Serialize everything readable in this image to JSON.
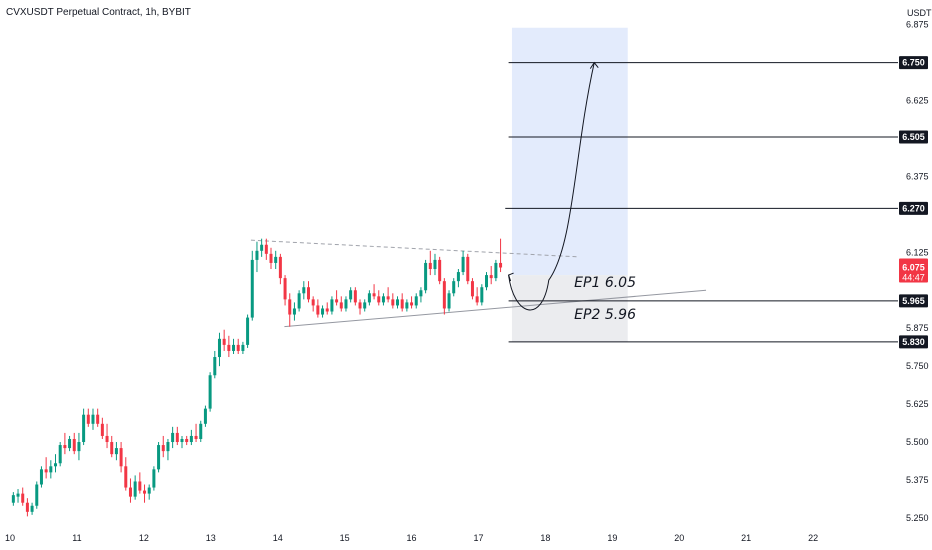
{
  "header": {
    "title": "CVXUSDT Perpetual Contract, 1h, BYBIT"
  },
  "chart_data": {
    "type": "candlestick",
    "title": "CVXUSDT Perpetual Contract, 1h, BYBIT",
    "currency_label": "USDT",
    "ylim": [
      5.22,
      6.93
    ],
    "xlim": [
      10.0,
      22.85
    ],
    "x_ticks": [
      {
        "value": 10,
        "label": "10"
      },
      {
        "value": 11,
        "label": "11"
      },
      {
        "value": 12,
        "label": "12"
      },
      {
        "value": 13,
        "label": "13"
      },
      {
        "value": 14,
        "label": "14"
      },
      {
        "value": 15,
        "label": "15"
      },
      {
        "value": 16,
        "label": "16"
      },
      {
        "value": 17,
        "label": "17"
      },
      {
        "value": 18,
        "label": "18"
      },
      {
        "value": 19,
        "label": "19"
      },
      {
        "value": 20,
        "label": "20"
      },
      {
        "value": 21,
        "label": "21"
      },
      {
        "value": 22,
        "label": "22"
      }
    ],
    "y_ticks": [
      {
        "value": 6.875,
        "label": "6.875"
      },
      {
        "value": 6.625,
        "label": "6.625"
      },
      {
        "value": 6.375,
        "label": "6.375"
      },
      {
        "value": 6.125,
        "label": "6.125"
      },
      {
        "value": 5.875,
        "label": "5.875"
      },
      {
        "value": 5.75,
        "label": "5.750"
      },
      {
        "value": 5.625,
        "label": "5.625"
      },
      {
        "value": 5.5,
        "label": "5.500"
      },
      {
        "value": 5.375,
        "label": "5.375"
      },
      {
        "value": 5.25,
        "label": "5.250"
      }
    ],
    "price_levels": [
      {
        "value": 6.75,
        "label": "6.750",
        "x_start": 17.45
      },
      {
        "value": 6.505,
        "label": "6.505",
        "x_start": 17.45
      },
      {
        "value": 6.27,
        "label": "6.270",
        "x_start": 17.4
      },
      {
        "value": 5.965,
        "label": "5.965",
        "x_start": 17.45
      },
      {
        "value": 5.83,
        "label": "5.830",
        "x_start": 17.45
      }
    ],
    "current_price": {
      "value": 6.075,
      "label": "6.075",
      "countdown": "44:47",
      "color": "#f23645"
    },
    "position": {
      "x_start": 17.5,
      "x_end": 19.23,
      "entry": 6.05,
      "target": 6.865,
      "stop": 5.83,
      "profit_color": "#e3ebfc",
      "loss_color": "#ebecef"
    },
    "annotations": [
      {
        "text": "EP1 6.05",
        "x": 18.43,
        "y": 6.01
      },
      {
        "text": "EP2 5.96",
        "x": 18.43,
        "y": 5.905
      }
    ],
    "trendlines": [
      {
        "name": "upper-resistance",
        "x1": 13.6,
        "y1": 6.165,
        "x2": 18.5,
        "y2": 6.11,
        "style": "dashed"
      },
      {
        "name": "lower-support",
        "x1": 14.1,
        "y1": 5.88,
        "x2": 20.4,
        "y2": 6.0,
        "style": "solid"
      }
    ],
    "projection": {
      "path": [
        [
          17.45,
          6.05
        ],
        [
          17.8,
          5.95
        ],
        [
          18.2,
          6.05
        ],
        [
          18.73,
          6.75
        ]
      ]
    },
    "ohlc": [
      [
        10.05,
        5.3,
        5.335,
        5.29,
        5.325
      ],
      [
        10.12,
        5.32,
        5.345,
        5.3,
        5.33
      ],
      [
        10.19,
        5.33,
        5.35,
        5.29,
        5.3
      ],
      [
        10.26,
        5.3,
        5.315,
        5.255,
        5.27
      ],
      [
        10.33,
        5.27,
        5.3,
        5.26,
        5.29
      ],
      [
        10.4,
        5.29,
        5.37,
        5.28,
        5.36
      ],
      [
        10.47,
        5.36,
        5.42,
        5.35,
        5.41
      ],
      [
        10.54,
        5.41,
        5.45,
        5.38,
        5.4
      ],
      [
        10.61,
        5.4,
        5.44,
        5.38,
        5.42
      ],
      [
        10.68,
        5.42,
        5.46,
        5.4,
        5.43
      ],
      [
        10.75,
        5.43,
        5.5,
        5.42,
        5.49
      ],
      [
        10.82,
        5.49,
        5.53,
        5.46,
        5.48
      ],
      [
        10.89,
        5.48,
        5.52,
        5.47,
        5.51
      ],
      [
        10.96,
        5.51,
        5.53,
        5.46,
        5.47
      ],
      [
        11.03,
        5.47,
        5.53,
        5.44,
        5.5
      ],
      [
        11.1,
        5.5,
        5.61,
        5.49,
        5.59
      ],
      [
        11.17,
        5.59,
        5.61,
        5.55,
        5.56
      ],
      [
        11.24,
        5.56,
        5.61,
        5.54,
        5.59
      ],
      [
        11.31,
        5.59,
        5.61,
        5.55,
        5.56
      ],
      [
        11.38,
        5.56,
        5.58,
        5.51,
        5.52
      ],
      [
        11.45,
        5.52,
        5.56,
        5.48,
        5.5
      ],
      [
        11.52,
        5.5,
        5.52,
        5.45,
        5.46
      ],
      [
        11.59,
        5.46,
        5.5,
        5.44,
        5.48
      ],
      [
        11.66,
        5.48,
        5.5,
        5.4,
        5.42
      ],
      [
        11.73,
        5.42,
        5.45,
        5.34,
        5.35
      ],
      [
        11.8,
        5.35,
        5.38,
        5.3,
        5.32
      ],
      [
        11.87,
        5.32,
        5.39,
        5.31,
        5.37
      ],
      [
        11.94,
        5.37,
        5.4,
        5.33,
        5.34
      ],
      [
        12.01,
        5.34,
        5.36,
        5.3,
        5.33
      ],
      [
        12.08,
        5.33,
        5.36,
        5.31,
        5.35
      ],
      [
        12.15,
        5.35,
        5.42,
        5.34,
        5.41
      ],
      [
        12.22,
        5.41,
        5.5,
        5.4,
        5.49
      ],
      [
        12.29,
        5.49,
        5.52,
        5.45,
        5.47
      ],
      [
        12.36,
        5.47,
        5.51,
        5.44,
        5.5
      ],
      [
        12.43,
        5.5,
        5.55,
        5.48,
        5.53
      ],
      [
        12.5,
        5.53,
        5.55,
        5.49,
        5.5
      ],
      [
        12.57,
        5.5,
        5.52,
        5.48,
        5.51
      ],
      [
        12.64,
        5.51,
        5.52,
        5.49,
        5.5
      ],
      [
        12.71,
        5.5,
        5.54,
        5.49,
        5.52
      ],
      [
        12.78,
        5.52,
        5.56,
        5.5,
        5.51
      ],
      [
        12.85,
        5.51,
        5.57,
        5.5,
        5.56
      ],
      [
        12.92,
        5.56,
        5.62,
        5.55,
        5.61
      ],
      [
        12.99,
        5.61,
        5.73,
        5.6,
        5.72
      ],
      [
        13.06,
        5.72,
        5.8,
        5.71,
        5.78
      ],
      [
        13.13,
        5.78,
        5.86,
        5.75,
        5.84
      ],
      [
        13.2,
        5.84,
        5.87,
        5.8,
        5.82
      ],
      [
        13.27,
        5.82,
        5.85,
        5.78,
        5.8
      ],
      [
        13.34,
        5.8,
        5.84,
        5.79,
        5.82
      ],
      [
        13.41,
        5.82,
        5.84,
        5.79,
        5.8
      ],
      [
        13.48,
        5.8,
        5.83,
        5.79,
        5.82
      ],
      [
        13.55,
        5.82,
        5.92,
        5.81,
        5.91
      ],
      [
        13.62,
        5.91,
        6.13,
        5.9,
        6.1
      ],
      [
        13.69,
        6.1,
        6.16,
        6.06,
        6.13
      ],
      [
        13.76,
        6.13,
        6.17,
        6.11,
        6.15
      ],
      [
        13.83,
        6.15,
        6.17,
        6.1,
        6.12
      ],
      [
        13.9,
        6.12,
        6.14,
        6.07,
        6.09
      ],
      [
        13.97,
        6.09,
        6.13,
        6.07,
        6.11
      ],
      [
        14.04,
        6.11,
        6.12,
        6.02,
        6.04
      ],
      [
        14.11,
        6.04,
        6.05,
        5.95,
        5.97
      ],
      [
        14.18,
        5.97,
        5.99,
        5.88,
        5.92
      ],
      [
        14.25,
        5.92,
        5.96,
        5.9,
        5.94
      ],
      [
        14.32,
        5.94,
        6.0,
        5.93,
        5.99
      ],
      [
        14.39,
        5.99,
        6.03,
        5.97,
        6.01
      ],
      [
        14.46,
        6.01,
        6.03,
        5.96,
        5.97
      ],
      [
        14.53,
        5.97,
        5.98,
        5.93,
        5.95
      ],
      [
        14.6,
        5.95,
        5.97,
        5.91,
        5.92
      ],
      [
        14.67,
        5.92,
        5.95,
        5.91,
        5.94
      ],
      [
        14.74,
        5.94,
        5.96,
        5.92,
        5.93
      ],
      [
        14.81,
        5.93,
        5.98,
        5.92,
        5.97
      ],
      [
        14.88,
        5.97,
        6.0,
        5.95,
        5.96
      ],
      [
        14.95,
        5.96,
        5.98,
        5.93,
        5.94
      ],
      [
        15.02,
        5.94,
        5.98,
        5.93,
        5.97
      ],
      [
        15.09,
        5.97,
        6.01,
        5.96,
        6.0
      ],
      [
        15.16,
        6.0,
        6.01,
        5.95,
        5.96
      ],
      [
        15.23,
        5.96,
        5.97,
        5.92,
        5.94
      ],
      [
        15.3,
        5.94,
        5.97,
        5.93,
        5.96
      ],
      [
        15.37,
        5.96,
        6.0,
        5.95,
        5.99
      ],
      [
        15.44,
        5.99,
        6.02,
        5.97,
        5.98
      ],
      [
        15.51,
        5.98,
        6.0,
        5.95,
        5.96
      ],
      [
        15.58,
        5.96,
        5.99,
        5.95,
        5.98
      ],
      [
        15.65,
        5.98,
        6.01,
        5.96,
        5.97
      ],
      [
        15.72,
        5.97,
        5.99,
        5.94,
        5.95
      ],
      [
        15.79,
        5.95,
        5.98,
        5.94,
        5.97
      ],
      [
        15.86,
        5.97,
        5.99,
        5.93,
        5.94
      ],
      [
        15.93,
        5.94,
        5.97,
        5.93,
        5.96
      ],
      [
        16.0,
        5.96,
        5.98,
        5.94,
        5.95
      ],
      [
        16.07,
        5.95,
        5.99,
        5.94,
        5.98
      ],
      [
        16.14,
        5.98,
        6.01,
        5.96,
        6.0
      ],
      [
        16.21,
        6.0,
        6.1,
        5.99,
        6.09
      ],
      [
        16.28,
        6.09,
        6.13,
        6.05,
        6.07
      ],
      [
        16.35,
        6.07,
        6.12,
        6.05,
        6.1
      ],
      [
        16.42,
        6.1,
        6.11,
        6.02,
        6.03
      ],
      [
        16.49,
        6.03,
        6.04,
        5.92,
        5.94
      ],
      [
        16.56,
        5.94,
        6.0,
        5.93,
        5.99
      ],
      [
        16.63,
        5.99,
        6.04,
        5.98,
        6.03
      ],
      [
        16.7,
        6.03,
        6.07,
        6.01,
        6.06
      ],
      [
        16.77,
        6.06,
        6.13,
        6.05,
        6.11
      ],
      [
        16.84,
        6.11,
        6.12,
        6.02,
        6.03
      ],
      [
        16.91,
        6.03,
        6.04,
        5.97,
        5.98
      ],
      [
        16.98,
        5.98,
        6.01,
        5.95,
        5.96
      ],
      [
        17.05,
        5.96,
        6.02,
        5.95,
        6.01
      ],
      [
        17.12,
        6.01,
        6.06,
        6.0,
        6.05
      ],
      [
        17.19,
        6.05,
        6.08,
        6.02,
        6.04
      ],
      [
        17.26,
        6.04,
        6.1,
        6.03,
        6.09
      ],
      [
        17.33,
        6.09,
        6.17,
        6.06,
        6.075
      ]
    ]
  }
}
